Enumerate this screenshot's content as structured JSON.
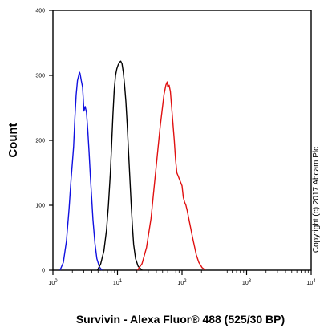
{
  "chart_data": {
    "type": "line",
    "xlabel": "Survivin - Alexa Fluor® 488 (525/30 BP)",
    "ylabel": "Count",
    "xscale": "log",
    "xlim": [
      1,
      10000
    ],
    "ylim": [
      0,
      400
    ],
    "yticks": [
      0,
      100,
      200,
      300,
      400
    ],
    "xticks": [
      {
        "value": 1,
        "base": "10",
        "exp": "0"
      },
      {
        "value": 10,
        "base": "10",
        "exp": "1"
      },
      {
        "value": 100,
        "base": "10",
        "exp": "2"
      },
      {
        "value": 1000,
        "base": "10",
        "exp": "3"
      },
      {
        "value": 10000,
        "base": "10",
        "exp": "4"
      }
    ],
    "grid": false,
    "series": [
      {
        "color": "#1010e0",
        "points": [
          [
            1.29,
            0
          ],
          [
            1.45,
            12
          ],
          [
            1.62,
            45
          ],
          [
            1.78,
            95
          ],
          [
            1.91,
            140
          ],
          [
            2.0,
            165
          ],
          [
            2.09,
            190
          ],
          [
            2.19,
            235
          ],
          [
            2.29,
            270
          ],
          [
            2.4,
            292
          ],
          [
            2.51,
            300
          ],
          [
            2.57,
            305
          ],
          [
            2.63,
            303
          ],
          [
            2.75,
            292
          ],
          [
            2.88,
            282
          ],
          [
            2.95,
            264
          ],
          [
            3.02,
            245
          ],
          [
            3.16,
            252
          ],
          [
            3.31,
            243
          ],
          [
            3.47,
            215
          ],
          [
            3.63,
            182
          ],
          [
            3.8,
            145
          ],
          [
            3.98,
            112
          ],
          [
            4.17,
            78
          ],
          [
            4.47,
            42
          ],
          [
            4.79,
            18
          ],
          [
            5.25,
            5
          ],
          [
            5.75,
            0
          ]
        ]
      },
      {
        "color": "#000000",
        "points": [
          [
            4.9,
            0
          ],
          [
            5.5,
            10
          ],
          [
            6.17,
            30
          ],
          [
            6.76,
            62
          ],
          [
            7.24,
            100
          ],
          [
            7.76,
            150
          ],
          [
            8.13,
            195
          ],
          [
            8.51,
            240
          ],
          [
            8.91,
            278
          ],
          [
            9.33,
            300
          ],
          [
            9.77,
            310
          ],
          [
            10.23,
            316
          ],
          [
            10.72,
            320
          ],
          [
            11.22,
            322
          ],
          [
            11.75,
            318
          ],
          [
            12.3,
            305
          ],
          [
            12.88,
            285
          ],
          [
            13.49,
            260
          ],
          [
            14.13,
            225
          ],
          [
            14.79,
            185
          ],
          [
            15.49,
            145
          ],
          [
            16.22,
            105
          ],
          [
            16.98,
            70
          ],
          [
            17.78,
            40
          ],
          [
            19.05,
            18
          ],
          [
            20.89,
            6
          ],
          [
            23.99,
            0
          ]
        ]
      },
      {
        "color": "#e01010",
        "points": [
          [
            20.42,
            0
          ],
          [
            23.99,
            10
          ],
          [
            28.18,
            35
          ],
          [
            33.11,
            80
          ],
          [
            37.15,
            130
          ],
          [
            41.69,
            180
          ],
          [
            45.71,
            220
          ],
          [
            48.98,
            245
          ],
          [
            52.48,
            270
          ],
          [
            56.23,
            285
          ],
          [
            58.88,
            290
          ],
          [
            60.26,
            282
          ],
          [
            63.1,
            285
          ],
          [
            66.07,
            275
          ],
          [
            69.18,
            250
          ],
          [
            72.44,
            225
          ],
          [
            75.86,
            200
          ],
          [
            79.43,
            170
          ],
          [
            83.18,
            150
          ],
          [
            87.1,
            145
          ],
          [
            91.2,
            140
          ],
          [
            95.5,
            135
          ],
          [
            100.0,
            130
          ],
          [
            104.7,
            112
          ],
          [
            109.6,
            105
          ],
          [
            114.8,
            100
          ],
          [
            120.2,
            92
          ],
          [
            125.9,
            82
          ],
          [
            131.8,
            72
          ],
          [
            138.0,
            62
          ],
          [
            144.5,
            52
          ],
          [
            154.9,
            38
          ],
          [
            166.0,
            24
          ],
          [
            182.0,
            12
          ],
          [
            204.2,
            4
          ],
          [
            229.1,
            0
          ]
        ]
      }
    ],
    "copyright": "Copyright (c) 2017 Abcam Plc"
  }
}
